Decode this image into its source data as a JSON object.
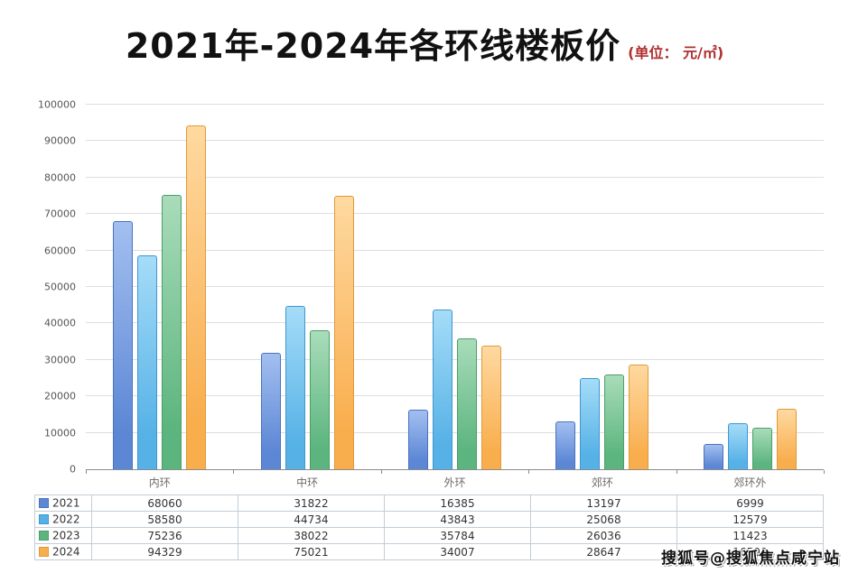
{
  "title": "2021年-2024年各环线楼板价",
  "subtitle": "(单位： 元/㎡)",
  "watermark": "搜狐号@搜狐焦点咸宁站",
  "chart_data": {
    "type": "bar",
    "title": "2021年-2024年各环线楼板价",
    "unit_label": "元/㎡",
    "categories": [
      "内环",
      "中环",
      "外环",
      "郊环",
      "郊环外"
    ],
    "series": [
      {
        "name": "2021",
        "color": "#5c87d5",
        "color_light": "#a3bff0",
        "color_dark": "#4a73bd",
        "values": [
          68060,
          31822,
          16385,
          13197,
          6999
        ]
      },
      {
        "name": "2022",
        "color": "#55b1e6",
        "color_light": "#a5dcf8",
        "color_dark": "#3f97cf",
        "values": [
          58580,
          44734,
          43843,
          25068,
          12579
        ]
      },
      {
        "name": "2023",
        "color": "#5cb57e",
        "color_light": "#a9dcba",
        "color_dark": "#4a9e68",
        "values": [
          75236,
          38022,
          35784,
          26036,
          11423
        ]
      },
      {
        "name": "2024",
        "color": "#f9ae4e",
        "color_light": "#fed9a0",
        "color_dark": "#e09a3a",
        "values": [
          94329,
          75021,
          34007,
          28647,
          16500
        ]
      }
    ],
    "xlabel": "",
    "ylabel": "",
    "ylim": [
      0,
      100000
    ],
    "ytick_step": 10000,
    "grid": true,
    "legend_position": "table-left"
  }
}
